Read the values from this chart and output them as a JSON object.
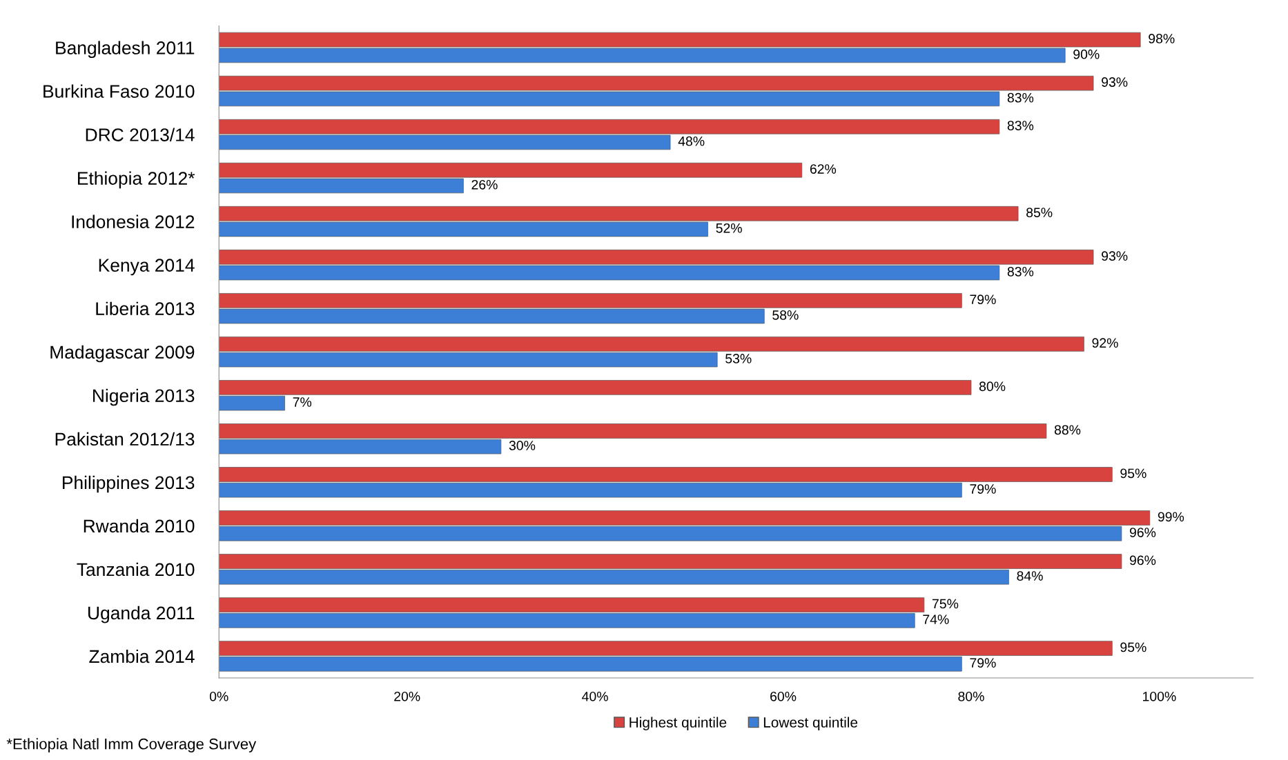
{
  "chart_data": {
    "type": "bar",
    "orientation": "horizontal",
    "categories": [
      "Bangladesh 2011",
      "Burkina Faso 2010",
      "DRC 2013/14",
      "Ethiopia 2012*",
      "Indonesia 2012",
      "Kenya 2014",
      "Liberia 2013",
      "Madagascar 2009",
      "Nigeria 2013",
      "Pakistan 2012/13",
      "Philippines 2013",
      "Rwanda 2010",
      "Tanzania 2010",
      "Uganda 2011",
      "Zambia 2014"
    ],
    "series": [
      {
        "name": "Highest quintile",
        "color": "#d9433f",
        "values": [
          98,
          93,
          83,
          62,
          85,
          93,
          79,
          92,
          80,
          88,
          95,
          99,
          96,
          75,
          95
        ],
        "value_labels": [
          "98%",
          "93%",
          "83%",
          "62%",
          "85%",
          "93%",
          "79%",
          "92%",
          "80%",
          "88%",
          "95%",
          "99%",
          "96%",
          "75%",
          "95%"
        ]
      },
      {
        "name": "Lowest quintile",
        "color": "#3d7fd6",
        "values": [
          90,
          83,
          48,
          26,
          52,
          83,
          58,
          53,
          7,
          30,
          79,
          96,
          84,
          74,
          79
        ],
        "value_labels": [
          "90%",
          "83%",
          "48%",
          "26%",
          "52%",
          "83%",
          "58%",
          "53%",
          "7%",
          "30%",
          "79%",
          "96%",
          "84%",
          "74%",
          "79%"
        ]
      }
    ],
    "xlim": [
      0,
      110
    ],
    "xticks": [
      {
        "value": 0,
        "label": "0%"
      },
      {
        "value": 20,
        "label": "20%"
      },
      {
        "value": 40,
        "label": "40%"
      },
      {
        "value": 60,
        "label": "60%"
      },
      {
        "value": 80,
        "label": "80%"
      },
      {
        "value": 100,
        "label": "100%"
      }
    ],
    "legend": "bottom",
    "grid": false,
    "annotations": [
      "*Ethiopia Natl Imm Coverage Survey"
    ]
  }
}
